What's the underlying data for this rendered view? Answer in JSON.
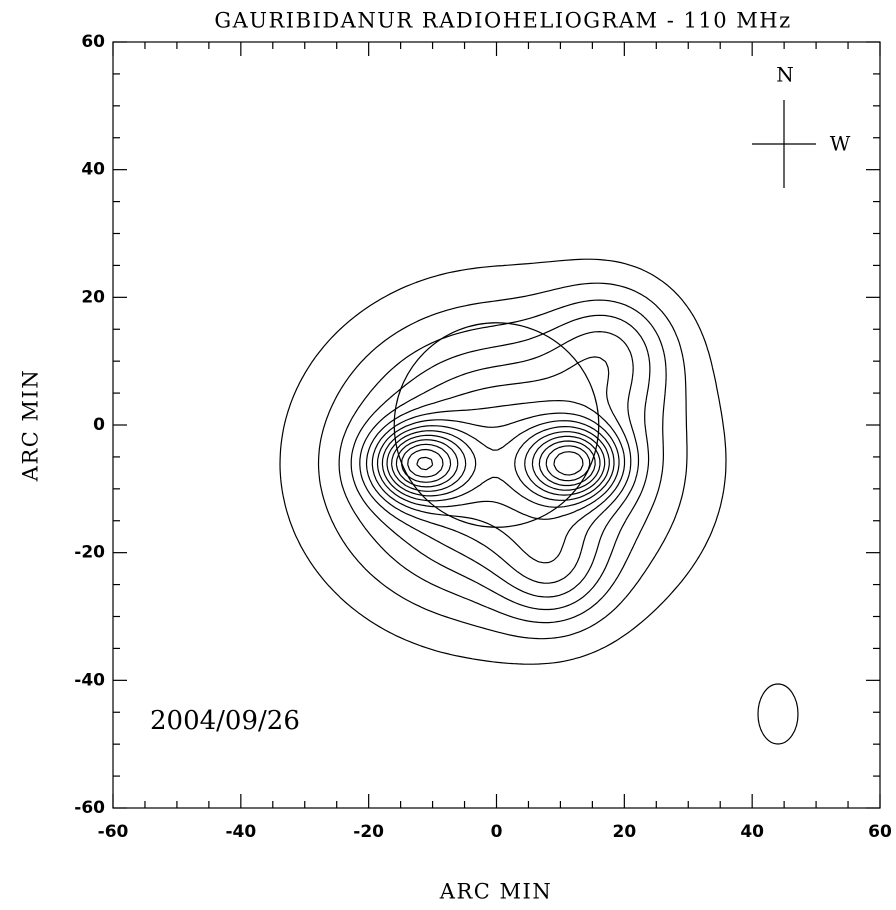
{
  "chart_data": {
    "type": "contour",
    "title": "GAURIBIDANUR RADIOHELIOGRAM - 110 MHz",
    "x_label": "ARC MIN",
    "y_label": "ARC MIN",
    "xlim": [
      -60,
      60
    ],
    "ylim": [
      -60,
      60
    ],
    "xticks": [
      -60,
      -40,
      -20,
      0,
      20,
      40,
      60
    ],
    "yticks": [
      -60,
      -40,
      -20,
      0,
      20,
      40,
      60
    ],
    "annotation": "2004/09/26",
    "compass": {
      "north": "N",
      "west": "W"
    }
  }
}
